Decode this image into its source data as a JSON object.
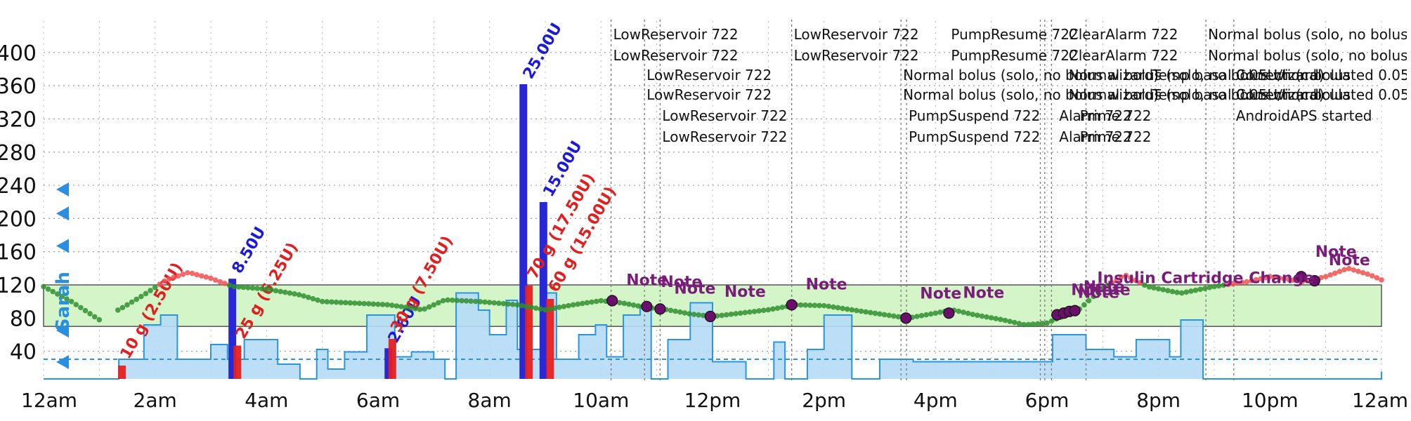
{
  "chart_data": {
    "type": "line",
    "patient_label": "Sarah",
    "colors": {
      "in_range": "#2f8f2f",
      "high": "#f05050",
      "target_band": "#d4f5c8",
      "target_band_border": "#555555",
      "basal_fill": "#b5dcf6",
      "basal_line": "#2a95de",
      "carb": "#e62020",
      "bolus": "#2828d8",
      "note_text": "#7a1d7a",
      "note_dot": "#6a0f6a",
      "side_marker": "#2a8fe0"
    },
    "y_axis": {
      "range": [
        0,
        420
      ],
      "ticks": [
        40,
        80,
        120,
        160,
        200,
        240,
        280,
        320,
        360,
        400
      ]
    },
    "x_axis": {
      "range_hours": [
        0,
        24
      ],
      "ticks": [
        {
          "h": 0,
          "label": "12am"
        },
        {
          "h": 2,
          "label": "2am"
        },
        {
          "h": 4,
          "label": "4am"
        },
        {
          "h": 6,
          "label": "6am"
        },
        {
          "h": 8,
          "label": "8am"
        },
        {
          "h": 10,
          "label": "10am"
        },
        {
          "h": 12,
          "label": "12pm"
        },
        {
          "h": 14,
          "label": "2pm"
        },
        {
          "h": 16,
          "label": "4pm"
        },
        {
          "h": 18,
          "label": "6pm"
        },
        {
          "h": 20,
          "label": "8pm"
        },
        {
          "h": 22,
          "label": "10pm"
        },
        {
          "h": 24,
          "label": "12am"
        }
      ]
    },
    "target_range": [
      70,
      120
    ],
    "glucose_keypoints": [
      [
        0.0,
        118
      ],
      [
        0.5,
        100
      ],
      [
        1.0,
        78
      ],
      [
        1.4,
        92
      ],
      [
        1.8,
        108
      ],
      [
        2.2,
        126
      ],
      [
        2.6,
        135
      ],
      [
        3.0,
        128
      ],
      [
        3.4,
        118
      ],
      [
        4.0,
        115
      ],
      [
        4.6,
        108
      ],
      [
        5.0,
        100
      ],
      [
        5.6,
        98
      ],
      [
        6.2,
        96
      ],
      [
        6.8,
        90
      ],
      [
        7.2,
        102
      ],
      [
        7.8,
        100
      ],
      [
        8.5,
        96
      ],
      [
        9.0,
        90
      ],
      [
        9.5,
        96
      ],
      [
        10.0,
        101
      ],
      [
        10.4,
        98
      ],
      [
        10.8,
        93
      ],
      [
        11.2,
        90
      ],
      [
        11.6,
        85
      ],
      [
        12.0,
        82
      ],
      [
        12.5,
        86
      ],
      [
        13.0,
        90
      ],
      [
        13.5,
        96
      ],
      [
        14.0,
        95
      ],
      [
        14.5,
        90
      ],
      [
        15.0,
        85
      ],
      [
        15.5,
        80
      ],
      [
        16.0,
        86
      ],
      [
        16.3,
        90
      ],
      [
        16.7,
        84
      ],
      [
        17.2,
        78
      ],
      [
        17.6,
        72
      ],
      [
        18.0,
        74
      ],
      [
        18.2,
        80
      ],
      [
        18.5,
        86
      ],
      [
        19.0,
        116
      ],
      [
        19.4,
        132
      ],
      [
        19.8,
        118
      ],
      [
        20.4,
        110
      ],
      [
        21.0,
        118
      ],
      [
        21.6,
        124
      ],
      [
        22.0,
        130
      ],
      [
        22.6,
        124
      ],
      [
        23.0,
        130
      ],
      [
        23.4,
        140
      ],
      [
        23.8,
        132
      ],
      [
        24.0,
        126
      ]
    ],
    "basal_rate": [
      [
        0.0,
        0.0
      ],
      [
        1.35,
        0.0
      ],
      [
        1.35,
        0.8
      ],
      [
        1.8,
        0.8
      ],
      [
        1.8,
        2.2
      ],
      [
        2.1,
        2.2
      ],
      [
        2.1,
        2.6
      ],
      [
        2.4,
        2.6
      ],
      [
        2.4,
        0.8
      ],
      [
        3.0,
        0.8
      ],
      [
        3.0,
        1.4
      ],
      [
        3.3,
        1.4
      ],
      [
        3.3,
        0.8
      ],
      [
        3.6,
        0.8
      ],
      [
        3.6,
        1.6
      ],
      [
        4.2,
        1.6
      ],
      [
        4.2,
        0.6
      ],
      [
        4.6,
        0.6
      ],
      [
        4.6,
        0.0
      ],
      [
        4.9,
        0.0
      ],
      [
        4.9,
        1.2
      ],
      [
        5.1,
        1.2
      ],
      [
        5.1,
        0.4
      ],
      [
        5.4,
        0.4
      ],
      [
        5.4,
        1.1
      ],
      [
        5.8,
        1.1
      ],
      [
        5.8,
        2.6
      ],
      [
        6.3,
        2.6
      ],
      [
        6.3,
        0.9
      ],
      [
        6.6,
        0.9
      ],
      [
        6.6,
        1.1
      ],
      [
        7.0,
        1.1
      ],
      [
        7.0,
        0.8
      ],
      [
        7.2,
        0.8
      ],
      [
        7.2,
        0.0
      ],
      [
        7.4,
        0.0
      ],
      [
        7.4,
        3.5
      ],
      [
        7.8,
        3.5
      ],
      [
        7.8,
        2.8
      ],
      [
        8.0,
        2.8
      ],
      [
        8.0,
        1.8
      ],
      [
        8.3,
        1.8
      ],
      [
        8.3,
        3.2
      ],
      [
        8.5,
        3.2
      ],
      [
        8.5,
        1.2
      ],
      [
        9.0,
        1.2
      ],
      [
        9.0,
        3.5
      ],
      [
        9.2,
        3.5
      ],
      [
        9.2,
        0.8
      ],
      [
        9.6,
        0.8
      ],
      [
        9.6,
        1.8
      ],
      [
        9.9,
        1.8
      ],
      [
        9.9,
        2.2
      ],
      [
        10.1,
        2.2
      ],
      [
        10.1,
        0.9
      ],
      [
        10.4,
        0.9
      ],
      [
        10.4,
        2.6
      ],
      [
        10.7,
        2.6
      ],
      [
        10.7,
        3.0
      ],
      [
        10.9,
        3.0
      ],
      [
        10.9,
        0.0
      ],
      [
        11.2,
        0.0
      ],
      [
        11.2,
        1.6
      ],
      [
        11.6,
        1.6
      ],
      [
        11.6,
        3.1
      ],
      [
        12.0,
        3.1
      ],
      [
        12.0,
        0.7
      ],
      [
        12.6,
        0.7
      ],
      [
        12.6,
        0.0
      ],
      [
        13.1,
        0.0
      ],
      [
        13.1,
        1.5
      ],
      [
        13.3,
        1.5
      ],
      [
        13.3,
        0.0
      ],
      [
        13.7,
        0.0
      ],
      [
        13.7,
        1.2
      ],
      [
        14.0,
        1.2
      ],
      [
        14.0,
        2.6
      ],
      [
        14.5,
        2.6
      ],
      [
        14.5,
        0.0
      ],
      [
        15.0,
        0.0
      ],
      [
        15.0,
        0.8
      ],
      [
        15.6,
        0.8
      ],
      [
        15.6,
        0.7
      ],
      [
        18.1,
        0.7
      ],
      [
        18.1,
        1.8
      ],
      [
        18.7,
        1.8
      ],
      [
        18.7,
        1.2
      ],
      [
        19.2,
        1.2
      ],
      [
        19.2,
        0.9
      ],
      [
        19.6,
        0.9
      ],
      [
        19.6,
        1.6
      ],
      [
        20.2,
        1.6
      ],
      [
        20.2,
        0.9
      ],
      [
        20.4,
        0.9
      ],
      [
        20.4,
        2.4
      ],
      [
        20.8,
        2.4
      ],
      [
        20.8,
        0.0
      ],
      [
        24.0,
        0.0
      ],
      [
        24.0,
        0.3
      ]
    ],
    "basal_scale_max": 4.0,
    "scheduled_basal_level": 0.8,
    "carbs": [
      {
        "h": 1.4,
        "grams": 10,
        "label": "10 g (2.50U)"
      },
      {
        "h": 3.47,
        "grams": 25,
        "label": "25 g (6.25U)"
      },
      {
        "h": 6.25,
        "grams": 30,
        "label": "30 g (7.50U)"
      },
      {
        "h": 8.7,
        "grams": 70,
        "label": "70 g (17.50U)"
      },
      {
        "h": 9.08,
        "grams": 60,
        "label": "60 g (15.00U)"
      }
    ],
    "boluses": [
      {
        "h": 3.38,
        "units": 8.5,
        "label": "8.50U"
      },
      {
        "h": 6.18,
        "units": 2.6,
        "label": "2.60U"
      },
      {
        "h": 8.6,
        "units": 25.0,
        "label": "25.00U"
      },
      {
        "h": 8.96,
        "units": 15.0,
        "label": "15.00U"
      }
    ],
    "event_lines_h": [
      10.18,
      10.78,
      11.06,
      13.42,
      15.38,
      15.48,
      17.88,
      17.96,
      18.08,
      18.7,
      20.85,
      21.35
    ],
    "event_labels": [
      {
        "h": 10.18,
        "row": 0,
        "text": "LowReservoir 722"
      },
      {
        "h": 10.18,
        "row": 1,
        "text": "LowReservoir 722"
      },
      {
        "h": 10.78,
        "row": 2,
        "text": "LowReservoir 722"
      },
      {
        "h": 10.78,
        "row": 3,
        "text": "LowReservoir 722"
      },
      {
        "h": 11.06,
        "row": 4,
        "text": "LowReservoir 722"
      },
      {
        "h": 11.06,
        "row": 5,
        "text": "LowReservoir 722"
      },
      {
        "h": 13.42,
        "row": 0,
        "text": "LowReservoir 722"
      },
      {
        "h": 13.42,
        "row": 1,
        "text": "LowReservoir 722"
      },
      {
        "h": 16.24,
        "row": 0,
        "text": "PumpResume 722"
      },
      {
        "h": 16.24,
        "row": 1,
        "text": "PumpResume 722"
      },
      {
        "h": 15.38,
        "row": 2,
        "text": "Normal bolus (solo, no bolus wizard)"
      },
      {
        "h": 15.38,
        "row": 3,
        "text": "Normal bolus (solo, no bolus wizard)"
      },
      {
        "h": 15.48,
        "row": 4,
        "text": "PumpSuspend 722"
      },
      {
        "h": 15.48,
        "row": 5,
        "text": "PumpSuspend 722"
      },
      {
        "h": 18.35,
        "row": 0,
        "text": "ClearAlarm 722"
      },
      {
        "h": 18.35,
        "row": 1,
        "text": "ClearAlarm 722"
      },
      {
        "h": 18.35,
        "row": 2,
        "text": "Normal bolus (solo, no bolus wizard)"
      },
      {
        "h": 18.35,
        "row": 3,
        "text": "Normal bolus (solo, no bolus wizard)"
      },
      {
        "h": 18.18,
        "row": 4,
        "text": "Alarm 722"
      },
      {
        "h": 18.18,
        "row": 5,
        "text": "Alarm 722"
      },
      {
        "h": 18.55,
        "row": 4,
        "text": "Prime 722"
      },
      {
        "h": 18.55,
        "row": 5,
        "text": "Prime 722"
      },
      {
        "h": 19.85,
        "row": 2,
        "text": "Temp basal 0.05U/h (calculated 0.05U/h)"
      },
      {
        "h": 19.85,
        "row": 3,
        "text": "Temp basal 0.05U/h (calculated 0.05U/h)"
      },
      {
        "h": 21.35,
        "row": 2,
        "text": "Correction bolus"
      },
      {
        "h": 21.35,
        "row": 3,
        "text": "Correction bolus"
      },
      {
        "h": 20.85,
        "row": 0,
        "text": "Normal bolus (solo, no bolus wizard)"
      },
      {
        "h": 20.85,
        "row": 1,
        "text": "Normal bolus (solo, no bolus wizard)"
      },
      {
        "h": 21.35,
        "row": 4,
        "text": "AndroidAPS started"
      }
    ],
    "notes": [
      {
        "h": 10.2,
        "bg": 101,
        "label": "Note"
      },
      {
        "h": 10.82,
        "bg": 94,
        "label": "Note"
      },
      {
        "h": 11.06,
        "bg": 91,
        "label": "Note"
      },
      {
        "h": 11.96,
        "bg": 82,
        "label": "Note"
      },
      {
        "h": 13.42,
        "bg": 96,
        "label": "Note"
      },
      {
        "h": 15.47,
        "bg": 80,
        "label": "Note"
      },
      {
        "h": 16.24,
        "bg": 86,
        "label": "Note"
      },
      {
        "h": 18.18,
        "bg": 84,
        "label": "Note"
      },
      {
        "h": 18.3,
        "bg": 86,
        "label": "Note"
      },
      {
        "h": 18.4,
        "bg": 88,
        "label": "Note"
      },
      {
        "h": 18.5,
        "bg": 89,
        "label": "Note"
      },
      {
        "h": 22.56,
        "bg": 130,
        "label": "Note"
      },
      {
        "h": 22.8,
        "bg": 125,
        "label": "Note"
      }
    ],
    "site_change_label": "Insulin Cartridge Change",
    "site_change_h": 18.9,
    "side_markers_bg": [
      27,
      65,
      167,
      206,
      235
    ]
  }
}
